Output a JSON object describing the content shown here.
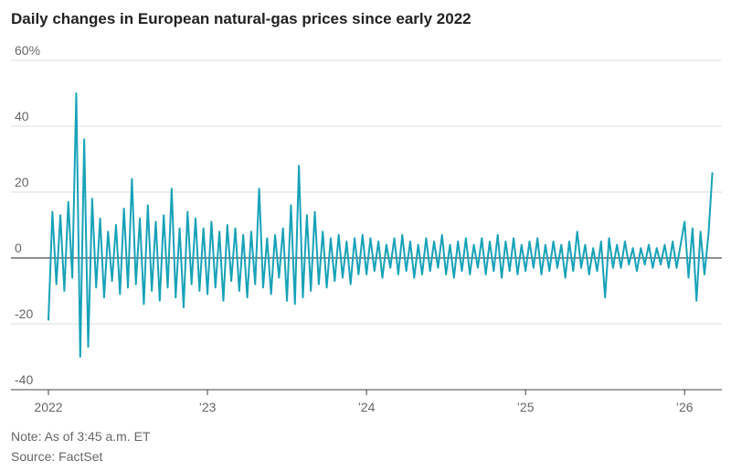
{
  "chart_data": {
    "type": "line",
    "title": "Daily changes in European natural-gas prices since early 2022",
    "note": "Note: As of 3:45 a.m. ET",
    "source": "Source: FactSet",
    "x": [
      2022,
      2022.025,
      2022.05,
      2022.075,
      2022.1,
      2022.125,
      2022.15,
      2022.175,
      2022.2,
      2022.225,
      2022.25,
      2022.275,
      2022.3,
      2022.325,
      2022.35,
      2022.375,
      2022.4,
      2022.425,
      2022.45,
      2022.475,
      2022.5,
      2022.525,
      2022.55,
      2022.575,
      2022.6,
      2022.625,
      2022.65,
      2022.675,
      2022.7,
      2022.725,
      2022.75,
      2022.775,
      2022.8,
      2022.825,
      2022.85,
      2022.875,
      2022.9,
      2022.925,
      2022.95,
      2022.975,
      2023,
      2023.025,
      2023.05,
      2023.075,
      2023.1,
      2023.125,
      2023.15,
      2023.175,
      2023.2,
      2023.225,
      2023.25,
      2023.275,
      2023.3,
      2023.325,
      2023.35,
      2023.375,
      2023.4,
      2023.425,
      2023.45,
      2023.475,
      2023.5,
      2023.525,
      2023.55,
      2023.575,
      2023.6,
      2023.625,
      2023.65,
      2023.675,
      2023.7,
      2023.725,
      2023.75,
      2023.775,
      2023.8,
      2023.825,
      2023.85,
      2023.875,
      2023.9,
      2023.925,
      2023.95,
      2023.975,
      2024,
      2024.025,
      2024.05,
      2024.075,
      2024.1,
      2024.125,
      2024.15,
      2024.175,
      2024.2,
      2024.225,
      2024.25,
      2024.275,
      2024.3,
      2024.325,
      2024.35,
      2024.375,
      2024.4,
      2024.425,
      2024.45,
      2024.475,
      2024.5,
      2024.525,
      2024.55,
      2024.575,
      2024.6,
      2024.625,
      2024.65,
      2024.675,
      2024.7,
      2024.725,
      2024.75,
      2024.775,
      2024.8,
      2024.825,
      2024.85,
      2024.875,
      2024.9,
      2024.925,
      2024.95,
      2024.975,
      2025,
      2025.025,
      2025.05,
      2025.075,
      2025.1,
      2025.125,
      2025.15,
      2025.175,
      2025.2,
      2025.225,
      2025.25,
      2025.275,
      2025.3,
      2025.325,
      2025.35,
      2025.375,
      2025.4,
      2025.425,
      2025.45,
      2025.475,
      2025.5,
      2025.525,
      2025.55,
      2025.575,
      2025.6,
      2025.625,
      2025.65,
      2025.675,
      2025.7,
      2025.725,
      2025.75,
      2025.775,
      2025.8,
      2025.825,
      2025.85,
      2025.875,
      2025.9,
      2025.925,
      2025.95,
      2025.975,
      2026,
      2026.025,
      2026.05,
      2026.075,
      2026.1,
      2026.125,
      2026.15,
      2026.175
    ],
    "series": [
      {
        "color": "#17a2b8",
        "values": [
          -19,
          14,
          -8,
          13,
          -10,
          17,
          -6,
          50,
          -30,
          36,
          -27,
          18,
          -9,
          12,
          -12,
          8,
          -7,
          10,
          -11,
          15,
          -9,
          24,
          -8,
          12,
          -14,
          16,
          -10,
          11,
          -13,
          13,
          -9,
          21,
          -12,
          9,
          -15,
          14,
          -8,
          12,
          -10,
          9,
          -11,
          11,
          -9,
          8,
          -13,
          10,
          -7,
          9,
          -10,
          7,
          -12,
          8,
          -8,
          21,
          -9,
          6,
          -11,
          7,
          -6,
          9,
          -13,
          16,
          -14,
          28,
          -12,
          13,
          -10,
          14,
          -8,
          8,
          -9,
          6,
          -7,
          7,
          -6,
          5,
          -8,
          6,
          -5,
          7,
          -5,
          6,
          -4,
          5,
          -6,
          4,
          -3,
          6,
          -5,
          7,
          -4,
          5,
          -6,
          4,
          -5,
          6,
          -4,
          5,
          -3,
          7,
          -5,
          4,
          -6,
          5,
          -4,
          6,
          -5,
          4,
          -3,
          6,
          -5,
          5,
          -4,
          7,
          -6,
          5,
          -4,
          6,
          -5,
          4,
          -4,
          5,
          -3,
          6,
          -5,
          4,
          -4,
          5,
          -3,
          4,
          -6,
          5,
          -4,
          8,
          -3,
          4,
          -5,
          3,
          -4,
          5,
          -12,
          6,
          -3,
          4,
          -3,
          5,
          -2,
          3,
          -4,
          3,
          -2,
          4,
          -3,
          3,
          -2,
          4,
          -3,
          5,
          -3,
          4,
          11,
          -6,
          9,
          -13,
          8,
          -5,
          7,
          26
        ]
      }
    ],
    "xlim": [
      2022,
      2026.2
    ],
    "xticks": [
      {
        "value": 2022,
        "label": "2022"
      },
      {
        "value": 2023,
        "label": "’23"
      },
      {
        "value": 2024,
        "label": "’24"
      },
      {
        "value": 2025,
        "label": "’25"
      },
      {
        "value": 2026,
        "label": "’26"
      }
    ],
    "ylim": [
      -40,
      60
    ],
    "yticks": [
      {
        "value": 60,
        "label": "60%"
      },
      40,
      20,
      0,
      -20,
      -40
    ],
    "grid": true
  }
}
